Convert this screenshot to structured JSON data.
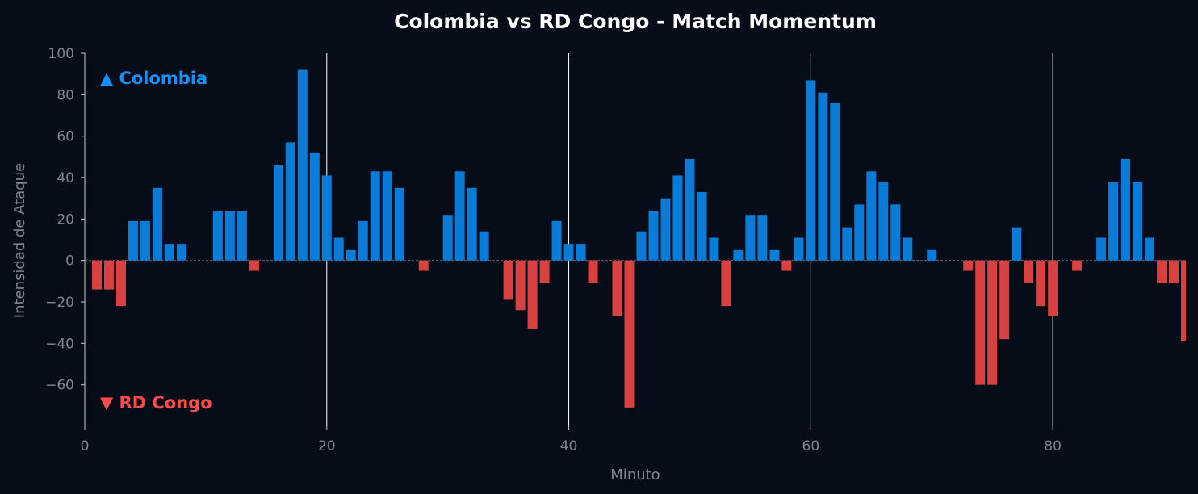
{
  "colors": {
    "background": "#070d18",
    "colombia": "#0a7bd6",
    "rd_congo": "#d94040",
    "colombia_label": "#1493ff",
    "rd_congo_label": "#ff4a4a",
    "axis": "#cccccc",
    "tick_text": "#7d8590",
    "title_text": "#ffffff",
    "vline": "#ffffff"
  },
  "chart_data": {
    "type": "bar",
    "title": "Colombia vs RD Congo - Match Momentum",
    "xlabel": "Minuto",
    "ylabel": "Intensidad de Ataque",
    "xlim": [
      0,
      91
    ],
    "ylim": [
      -80,
      100
    ],
    "xticks": [
      0,
      20,
      40,
      60,
      80
    ],
    "yticks": [
      -60,
      -40,
      -20,
      0,
      20,
      40,
      60,
      80,
      100
    ],
    "vlines": [
      20,
      40,
      60,
      80
    ],
    "grid": false,
    "team_labels": {
      "colombia": "▲ Colombia",
      "rd_congo": "▼ RD Congo"
    },
    "x": [
      1,
      2,
      3,
      4,
      5,
      6,
      7,
      8,
      9,
      10,
      11,
      12,
      13,
      14,
      15,
      16,
      17,
      18,
      19,
      20,
      21,
      22,
      23,
      24,
      25,
      26,
      27,
      28,
      29,
      30,
      31,
      32,
      33,
      34,
      35,
      36,
      37,
      38,
      39,
      40,
      41,
      42,
      43,
      44,
      45,
      46,
      47,
      48,
      49,
      50,
      51,
      52,
      53,
      54,
      55,
      56,
      57,
      58,
      59,
      60,
      61,
      62,
      63,
      64,
      65,
      66,
      67,
      68,
      69,
      70,
      71,
      72,
      73,
      74,
      75,
      76,
      77,
      78,
      79,
      80,
      81,
      82,
      83,
      84,
      85,
      86,
      87,
      88,
      89,
      90,
      91
    ],
    "values": [
      -14,
      -14,
      -22,
      19,
      19,
      35,
      8,
      8,
      0,
      0,
      24,
      24,
      24,
      -5,
      0,
      46,
      57,
      92,
      52,
      41,
      11,
      5,
      19,
      43,
      43,
      35,
      0,
      -5,
      0,
      22,
      43,
      35,
      14,
      0,
      -19,
      -24,
      -33,
      -11,
      19,
      8,
      8,
      -11,
      0,
      -27,
      -71,
      14,
      24,
      30,
      41,
      49,
      33,
      11,
      -22,
      5,
      22,
      22,
      5,
      -5,
      11,
      87,
      81,
      76,
      16,
      27,
      43,
      38,
      27,
      11,
      0,
      5,
      0,
      0,
      -5,
      -60,
      -60,
      -38,
      16,
      -11,
      -22,
      -27,
      0,
      -5,
      0,
      11,
      38,
      49,
      38,
      11,
      -11,
      -11,
      -39
    ],
    "extra_bar": {
      "x": 46,
      "value": 5
    }
  }
}
